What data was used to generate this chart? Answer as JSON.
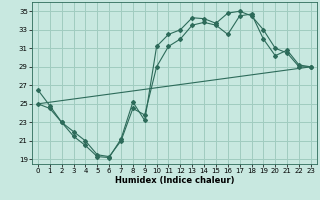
{
  "title": "",
  "xlabel": "Humidex (Indice chaleur)",
  "bg_color": "#c8e8e0",
  "grid_color": "#a0ccc0",
  "line_color": "#2d6b5a",
  "xlim": [
    -0.5,
    23.5
  ],
  "ylim": [
    18.5,
    36.0
  ],
  "xticks": [
    0,
    1,
    2,
    3,
    4,
    5,
    6,
    7,
    8,
    9,
    10,
    11,
    12,
    13,
    14,
    15,
    16,
    17,
    18,
    19,
    20,
    21,
    22,
    23
  ],
  "yticks": [
    19,
    21,
    23,
    25,
    27,
    29,
    31,
    33,
    35
  ],
  "line1_x": [
    0,
    1,
    2,
    3,
    4,
    5,
    6,
    7,
    8,
    9,
    10,
    11,
    12,
    13,
    14,
    15,
    16,
    17,
    18,
    19,
    20,
    21,
    22,
    23
  ],
  "line1_y": [
    26.5,
    24.8,
    23.0,
    21.5,
    20.5,
    19.3,
    19.2,
    21.2,
    25.2,
    23.2,
    31.2,
    32.5,
    33.0,
    34.3,
    34.2,
    33.7,
    34.8,
    35.0,
    34.5,
    33.0,
    31.0,
    30.5,
    29.0,
    29.0
  ],
  "line2_x": [
    0,
    1,
    2,
    3,
    4,
    5,
    6,
    7,
    8,
    9,
    10,
    11,
    12,
    13,
    14,
    15,
    16,
    17,
    18,
    19,
    20,
    21,
    22,
    23
  ],
  "line2_y": [
    25.0,
    24.5,
    23.0,
    22.0,
    21.0,
    19.5,
    19.3,
    21.0,
    24.5,
    23.8,
    29.0,
    31.2,
    32.0,
    33.5,
    33.8,
    33.5,
    32.5,
    34.5,
    34.7,
    32.0,
    30.2,
    30.8,
    29.2,
    29.0
  ],
  "line3_x": [
    0,
    23
  ],
  "line3_y": [
    25.0,
    29.0
  ]
}
